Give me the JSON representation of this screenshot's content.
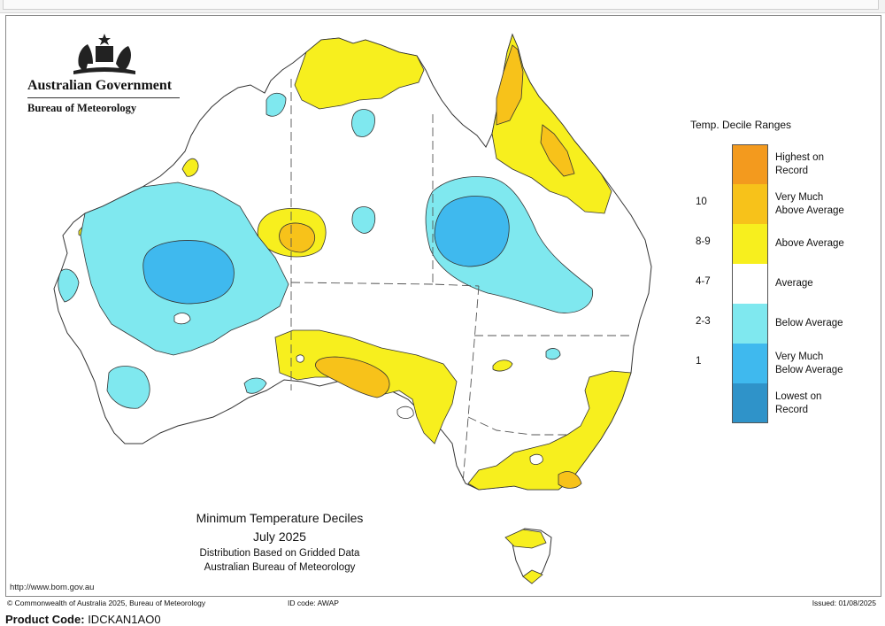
{
  "header": {
    "agency_name": "Australian Government",
    "bureau_name": "Bureau of Meteorology"
  },
  "map": {
    "title": "Minimum Temperature Deciles",
    "period": "July 2025",
    "subtitle": "Distribution Based on Gridded Data",
    "credit": "Australian Bureau of Meteorology",
    "website": "http://www.bom.gov.au"
  },
  "legend": {
    "title": "Temp. Decile Ranges",
    "items": [
      {
        "range": "",
        "label_line1": "Highest on",
        "label_line2": "Record",
        "color": "#f39a1e"
      },
      {
        "range": "10",
        "label_line1": "Very Much",
        "label_line2": "Above Average",
        "color": "#f7c21a"
      },
      {
        "range": "8-9",
        "label_line1": "Above Average",
        "label_line2": "",
        "color": "#f7ef1e"
      },
      {
        "range": "4-7",
        "label_line1": "Average",
        "label_line2": "",
        "color": "#ffffff"
      },
      {
        "range": "2-3",
        "label_line1": "Below Average",
        "label_line2": "",
        "color": "#7fe8ef"
      },
      {
        "range": "1",
        "label_line1": "Very Much",
        "label_line2": "Below Average",
        "color": "#3fb9ee"
      },
      {
        "range": "",
        "label_line1": "Lowest on",
        "label_line2": "Record",
        "color": "#2f93c9"
      }
    ]
  },
  "footer": {
    "copyright": "© Commonwealth of Australia 2025, Bureau of Meteorology",
    "id_code": "ID code: AWAP",
    "issued": "Issued: 01/08/2025"
  },
  "product": {
    "label": "Product Code:",
    "value": "IDCKAN1AO0"
  }
}
